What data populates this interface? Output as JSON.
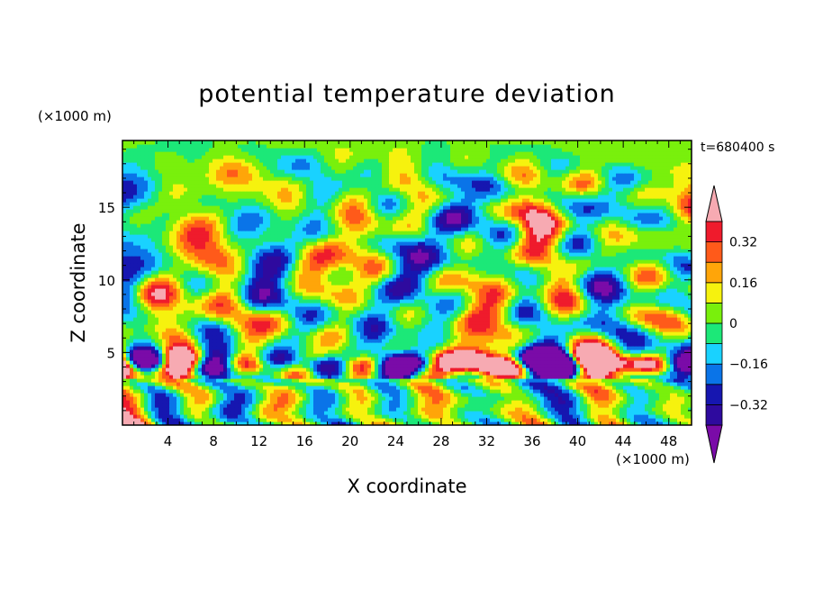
{
  "chart_data": {
    "type": "heatmap",
    "title": "potential temperature deviation",
    "xlabel": "X coordinate",
    "ylabel": "Z coordinate",
    "x_unit": "(×1000 m)",
    "y_unit": "(×1000 m)",
    "time_label": "t=680400 s",
    "xlim": [
      0,
      50
    ],
    "ylim": [
      0,
      19.6
    ],
    "x_ticks": [
      4,
      8,
      12,
      16,
      20,
      24,
      28,
      32,
      36,
      40,
      44,
      48
    ],
    "y_ticks": [
      5,
      10,
      15
    ],
    "x_tick_labels": [
      "4",
      "8",
      "12",
      "16",
      "20",
      "24",
      "28",
      "32",
      "36",
      "40",
      "44",
      "48"
    ],
    "y_tick_labels": [
      "5",
      "10",
      "15"
    ],
    "grid": false,
    "colorbar": {
      "placement": "right",
      "levels": [
        -0.4,
        -0.32,
        -0.24,
        -0.16,
        -0.08,
        0,
        0.08,
        0.16,
        0.24,
        0.32,
        0.4
      ],
      "labeled_levels": [
        "0.32",
        "0.16",
        "0",
        "−0.16",
        "−0.32"
      ],
      "labeled_values": [
        0.32,
        0.16,
        0,
        -0.16,
        -0.32
      ],
      "under_color": "#7a0ba8",
      "over_color": "#f7aab2",
      "band_colors": [
        "#2e0a9e",
        "#1616b0",
        "#0a74e8",
        "#19d2ff",
        "#1ce878",
        "#79f00c",
        "#f6f20e",
        "#ffa509",
        "#ff5a1a",
        "#ef1b2c"
      ]
    },
    "field_pattern": "turbulent cellular anomalies across 0–50 km in x and 0–19.6 km in z; strongest positive (pink/red) and negative (purple/blue) values near z ≈ 3–5 km"
  }
}
